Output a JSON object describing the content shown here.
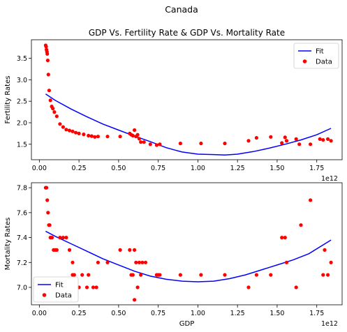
{
  "suptitle": "Canada",
  "colors": {
    "fit": "#0000ff",
    "data": "#ff0000",
    "axis": "#000000"
  },
  "chart_data": [
    {
      "type": "scatter",
      "title": "GDP Vs. Fertility Rate & GDP Vs. Mortality Rate",
      "xlabel": "",
      "ylabel": "Fertility Rates",
      "xlim": [
        -0.05,
        1.91
      ],
      "ylim": [
        1.14,
        3.93
      ],
      "x_scale_label": "1e12",
      "xticks": [
        0.0,
        0.25,
        0.5,
        0.75,
        1.0,
        1.25,
        1.5,
        1.75
      ],
      "xtick_labels": [
        "0.00",
        "0.25",
        "0.50",
        "0.75",
        "1.00",
        "1.25",
        "1.50",
        "1.75"
      ],
      "yticks": [
        1.5,
        2.0,
        2.5,
        3.0,
        3.5
      ],
      "ytick_labels": [
        "1.5",
        "2.0",
        "2.5",
        "3.0",
        "3.5"
      ],
      "legend": {
        "position": "top-right",
        "entries": [
          {
            "label": "Fit",
            "kind": "line"
          },
          {
            "label": "Data",
            "kind": "marker"
          }
        ]
      },
      "series": [
        {
          "name": "Fit",
          "kind": "line",
          "points": [
            [
              0.04,
              2.67
            ],
            [
              0.1,
              2.52
            ],
            [
              0.2,
              2.32
            ],
            [
              0.3,
              2.14
            ],
            [
              0.4,
              1.97
            ],
            [
              0.5,
              1.83
            ],
            [
              0.6,
              1.69
            ],
            [
              0.7,
              1.56
            ],
            [
              0.8,
              1.42
            ],
            [
              0.9,
              1.32
            ],
            [
              1.0,
              1.27
            ],
            [
              1.1,
              1.26
            ],
            [
              1.17,
              1.25
            ],
            [
              1.25,
              1.27
            ],
            [
              1.35,
              1.33
            ],
            [
              1.45,
              1.41
            ],
            [
              1.55,
              1.5
            ],
            [
              1.65,
              1.6
            ],
            [
              1.75,
              1.72
            ],
            [
              1.84,
              1.87
            ]
          ]
        },
        {
          "name": "Data",
          "kind": "scatter",
          "points": [
            [
              0.04,
              3.8
            ],
            [
              0.043,
              3.77
            ],
            [
              0.045,
              3.7
            ],
            [
              0.048,
              3.65
            ],
            [
              0.05,
              3.6
            ],
            [
              0.053,
              3.45
            ],
            [
              0.057,
              3.12
            ],
            [
              0.062,
              2.75
            ],
            [
              0.07,
              2.52
            ],
            [
              0.078,
              2.38
            ],
            [
              0.085,
              2.33
            ],
            [
              0.095,
              2.25
            ],
            [
              0.11,
              2.15
            ],
            [
              0.13,
              1.97
            ],
            [
              0.15,
              1.9
            ],
            [
              0.17,
              1.84
            ],
            [
              0.19,
              1.82
            ],
            [
              0.21,
              1.8
            ],
            [
              0.23,
              1.77
            ],
            [
              0.25,
              1.75
            ],
            [
              0.28,
              1.73
            ],
            [
              0.31,
              1.7
            ],
            [
              0.33,
              1.69
            ],
            [
              0.35,
              1.67
            ],
            [
              0.37,
              1.68
            ],
            [
              0.43,
              1.68
            ],
            [
              0.51,
              1.68
            ],
            [
              0.57,
              1.75
            ],
            [
              0.58,
              1.72
            ],
            [
              0.59,
              1.7
            ],
            [
              0.6,
              1.83
            ],
            [
              0.61,
              1.68
            ],
            [
              0.62,
              1.72
            ],
            [
              0.63,
              1.63
            ],
            [
              0.64,
              1.55
            ],
            [
              0.66,
              1.55
            ],
            [
              0.7,
              1.5
            ],
            [
              0.74,
              1.48
            ],
            [
              0.76,
              1.5
            ],
            [
              0.89,
              1.52
            ],
            [
              1.02,
              1.52
            ],
            [
              1.17,
              1.52
            ],
            [
              1.32,
              1.58
            ],
            [
              1.37,
              1.65
            ],
            [
              1.46,
              1.67
            ],
            [
              1.53,
              1.53
            ],
            [
              1.55,
              1.66
            ],
            [
              1.56,
              1.58
            ],
            [
              1.62,
              1.62
            ],
            [
              1.64,
              1.5
            ],
            [
              1.71,
              1.5
            ],
            [
              1.77,
              1.62
            ],
            [
              1.79,
              1.6
            ],
            [
              1.82,
              1.62
            ],
            [
              1.84,
              1.58
            ]
          ]
        }
      ]
    },
    {
      "type": "scatter",
      "title": "",
      "xlabel": "GDP",
      "ylabel": "Mortality Rates",
      "xlim": [
        -0.05,
        1.91
      ],
      "ylim": [
        6.86,
        7.84
      ],
      "x_scale_label": "1e12",
      "xticks": [
        0.0,
        0.25,
        0.5,
        0.75,
        1.0,
        1.25,
        1.5,
        1.75
      ],
      "xtick_labels": [
        "0.00",
        "0.25",
        "0.50",
        "0.75",
        "1.00",
        "1.25",
        "1.50",
        "1.75"
      ],
      "yticks": [
        7.0,
        7.2,
        7.4,
        7.6,
        7.8
      ],
      "ytick_labels": [
        "7.0",
        "7.2",
        "7.4",
        "7.6",
        "7.8"
      ],
      "legend": {
        "position": "bottom-left",
        "entries": [
          {
            "label": "Fit",
            "kind": "line"
          },
          {
            "label": "Data",
            "kind": "marker"
          }
        ]
      },
      "series": [
        {
          "name": "Fit",
          "kind": "line",
          "points": [
            [
              0.04,
              7.45
            ],
            [
              0.1,
              7.41
            ],
            [
              0.2,
              7.35
            ],
            [
              0.3,
              7.29
            ],
            [
              0.4,
              7.23
            ],
            [
              0.5,
              7.18
            ],
            [
              0.6,
              7.13
            ],
            [
              0.7,
              7.09
            ],
            [
              0.8,
              7.065
            ],
            [
              0.9,
              7.05
            ],
            [
              1.0,
              7.045
            ],
            [
              1.1,
              7.05
            ],
            [
              1.2,
              7.07
            ],
            [
              1.3,
              7.1
            ],
            [
              1.4,
              7.14
            ],
            [
              1.5,
              7.18
            ],
            [
              1.6,
              7.22
            ],
            [
              1.7,
              7.27
            ],
            [
              1.84,
              7.38
            ]
          ]
        },
        {
          "name": "Data",
          "kind": "scatter",
          "points": [
            [
              0.04,
              7.8
            ],
            [
              0.045,
              7.8
            ],
            [
              0.05,
              7.7
            ],
            [
              0.055,
              7.6
            ],
            [
              0.06,
              7.5
            ],
            [
              0.065,
              7.5
            ],
            [
              0.07,
              7.4
            ],
            [
              0.08,
              7.4
            ],
            [
              0.09,
              7.3
            ],
            [
              0.1,
              7.3
            ],
            [
              0.11,
              7.3
            ],
            [
              0.13,
              7.4
            ],
            [
              0.15,
              7.4
            ],
            [
              0.17,
              7.4
            ],
            [
              0.19,
              7.3
            ],
            [
              0.21,
              7.2
            ],
            [
              0.21,
              7.1
            ],
            [
              0.22,
              7.1
            ],
            [
              0.25,
              7.0
            ],
            [
              0.27,
              7.1
            ],
            [
              0.3,
              7.0
            ],
            [
              0.31,
              7.1
            ],
            [
              0.34,
              7.0
            ],
            [
              0.36,
              7.0
            ],
            [
              0.37,
              7.2
            ],
            [
              0.43,
              7.2
            ],
            [
              0.51,
              7.3
            ],
            [
              0.57,
              7.3
            ],
            [
              0.58,
              7.1
            ],
            [
              0.59,
              7.1
            ],
            [
              0.6,
              7.3
            ],
            [
              0.6,
              6.9
            ],
            [
              0.61,
              7.2
            ],
            [
              0.62,
              7.0
            ],
            [
              0.63,
              7.2
            ],
            [
              0.64,
              7.1
            ],
            [
              0.65,
              7.2
            ],
            [
              0.67,
              7.2
            ],
            [
              0.74,
              7.1
            ],
            [
              0.75,
              7.1
            ],
            [
              0.76,
              7.1
            ],
            [
              0.89,
              7.1
            ],
            [
              1.02,
              7.1
            ],
            [
              1.17,
              7.1
            ],
            [
              1.32,
              7.0
            ],
            [
              1.37,
              7.1
            ],
            [
              1.46,
              7.1
            ],
            [
              1.53,
              7.4
            ],
            [
              1.55,
              7.4
            ],
            [
              1.56,
              7.2
            ],
            [
              1.62,
              7.0
            ],
            [
              1.65,
              7.5
            ],
            [
              1.71,
              7.7
            ],
            [
              1.79,
              7.1
            ],
            [
              1.8,
              7.3
            ],
            [
              1.82,
              7.1
            ],
            [
              1.84,
              7.2
            ]
          ]
        }
      ]
    }
  ]
}
